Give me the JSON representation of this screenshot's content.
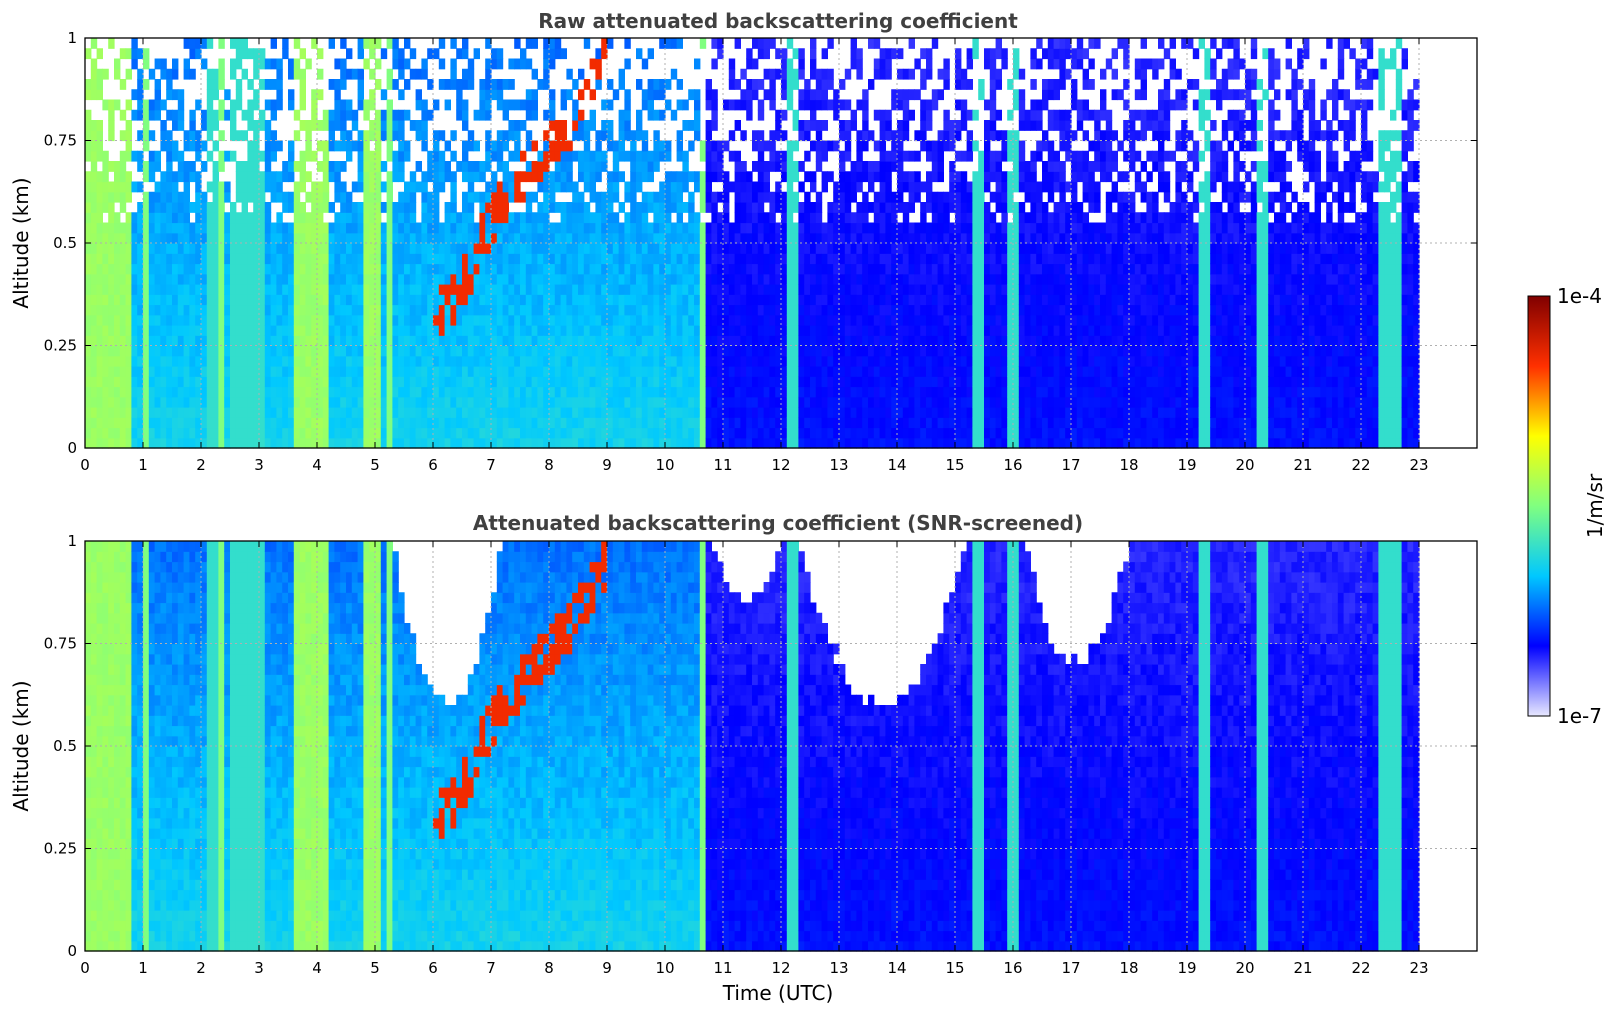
{
  "chart_data": [
    {
      "type": "heatmap",
      "title": "Raw attenuated backscattering coefficient",
      "xlabel": "",
      "ylabel": "Altitude (km)",
      "xlim": [
        0,
        24
      ],
      "ylim": [
        0,
        1
      ],
      "data_x_extent": [
        0,
        23
      ],
      "x_ticks": [
        "0",
        "1",
        "2",
        "3",
        "4",
        "5",
        "6",
        "7",
        "8",
        "9",
        "10",
        "11",
        "12",
        "13",
        "14",
        "15",
        "16",
        "17",
        "18",
        "19",
        "20",
        "21",
        "22",
        "23"
      ],
      "y_ticks": [
        "0",
        "0.25",
        "0.5",
        "0.75",
        "1"
      ],
      "grid": true,
      "screened": false,
      "features": {
        "fog_periods": [
          [
            0.0,
            0.8
          ],
          [
            3.6,
            4.2
          ],
          [
            4.8,
            5.05
          ]
        ],
        "strong_columns": [
          1.05,
          2.2,
          2.35,
          2.6,
          2.8,
          3.0,
          5.25,
          10.65,
          12.2,
          15.4,
          16.0,
          19.3,
          20.3,
          22.4,
          22.6
        ],
        "elevated_layer": [
          [
            6.0,
            0.3
          ],
          [
            6.5,
            0.4
          ],
          [
            7.0,
            0.55
          ],
          [
            7.5,
            0.65
          ],
          [
            8.5,
            0.82
          ],
          [
            9.0,
            0.95
          ]
        ],
        "aerosol_regime": [
          [
            0.0,
            10.6,
            "cyan"
          ],
          [
            10.6,
            23.0,
            "blue"
          ]
        ]
      }
    },
    {
      "type": "heatmap",
      "title": "Attenuated backscattering coefficient (SNR-screened)",
      "xlabel": "Time (UTC)",
      "ylabel": "Altitude (km)",
      "xlim": [
        0,
        24
      ],
      "ylim": [
        0,
        1
      ],
      "data_x_extent": [
        0,
        23
      ],
      "x_ticks": [
        "0",
        "1",
        "2",
        "3",
        "4",
        "5",
        "6",
        "7",
        "8",
        "9",
        "10",
        "11",
        "12",
        "13",
        "14",
        "15",
        "16",
        "17",
        "18",
        "19",
        "20",
        "21",
        "22",
        "23"
      ],
      "y_ticks": [
        "0",
        "0.25",
        "0.5",
        "0.75",
        "1"
      ],
      "grid": true,
      "screened": true,
      "features": {
        "screened_regions": [
          [
            5.3,
            7.2,
            0.6
          ],
          [
            10.8,
            12.0,
            0.85
          ],
          [
            12.3,
            15.2,
            0.6
          ],
          [
            16.2,
            18.0,
            0.7
          ]
        ]
      }
    }
  ],
  "colorbar": {
    "label": "1/m/sr",
    "min_label": "1e-7",
    "max_label": "1e-4",
    "scale": "log",
    "range": [
      1e-07,
      0.0001
    ],
    "colormap": [
      "#e8e8ff",
      "#0000ff",
      "#00c8ff",
      "#80ff80",
      "#ffff00",
      "#ff3000",
      "#800000"
    ]
  }
}
